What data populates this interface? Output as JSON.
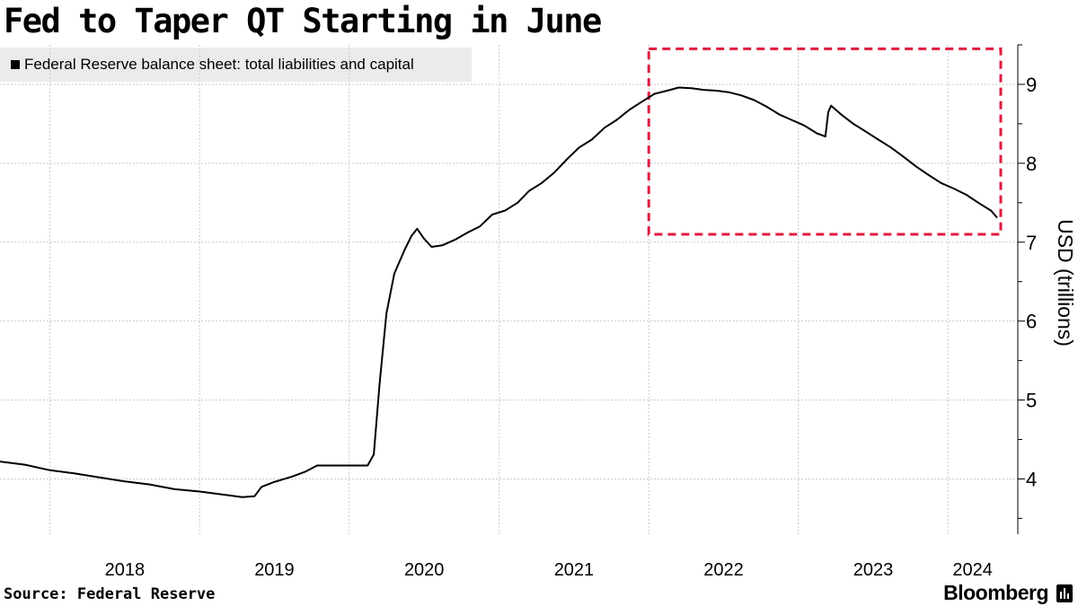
{
  "title": "Fed to Taper QT Starting in June",
  "legend_label": "Federal Reserve balance sheet: total liabilities and capital",
  "source": "Source: Federal Reserve",
  "brand": "Bloomberg",
  "brand_icon": "bloomberg-terminal-icon",
  "colors": {
    "line": "#000000",
    "grid": "#c8c8c8",
    "highlight": "#e0193f",
    "legend_bg": "#ebebeb"
  },
  "chart_data": {
    "type": "line",
    "title": "Fed to Taper QT Starting in June",
    "ylabel": "USD (trillions)",
    "ylim": [
      3.3,
      9.5
    ],
    "y_ticks": [
      4,
      5,
      6,
      7,
      8,
      9
    ],
    "xlim": [
      "2017-09-01",
      "2024-04-30"
    ],
    "x_ticks": [
      {
        "label": "2018",
        "date": "2018-01-01"
      },
      {
        "label": "2019",
        "date": "2019-01-01"
      },
      {
        "label": "2020",
        "date": "2020-01-01"
      },
      {
        "label": "2021",
        "date": "2021-01-01"
      },
      {
        "label": "2022",
        "date": "2022-01-01"
      },
      {
        "label": "2023",
        "date": "2023-01-01"
      },
      {
        "label": "2024",
        "date": "2024-01-01"
      }
    ],
    "grid": true,
    "legend_position": "top-left",
    "series": [
      {
        "name": "Federal Reserve balance sheet: total liabilities and capital",
        "points": [
          [
            "2017-09-01",
            4.22
          ],
          [
            "2017-11-01",
            4.18
          ],
          [
            "2018-01-01",
            4.11
          ],
          [
            "2018-03-01",
            4.07
          ],
          [
            "2018-05-01",
            4.02
          ],
          [
            "2018-07-01",
            3.97
          ],
          [
            "2018-09-01",
            3.93
          ],
          [
            "2018-11-01",
            3.87
          ],
          [
            "2019-01-01",
            3.84
          ],
          [
            "2019-03-01",
            3.8
          ],
          [
            "2019-04-15",
            3.77
          ],
          [
            "2019-05-15",
            3.78
          ],
          [
            "2019-06-01",
            3.9
          ],
          [
            "2019-07-01",
            3.96
          ],
          [
            "2019-08-15",
            4.03
          ],
          [
            "2019-09-15",
            4.09
          ],
          [
            "2019-10-15",
            4.17
          ],
          [
            "2019-12-01",
            4.17
          ],
          [
            "2020-01-01",
            4.17
          ],
          [
            "2020-02-15",
            4.17
          ],
          [
            "2020-03-01",
            4.31
          ],
          [
            "2020-03-15",
            5.2
          ],
          [
            "2020-04-01",
            6.1
          ],
          [
            "2020-04-20",
            6.6
          ],
          [
            "2020-05-15",
            6.9
          ],
          [
            "2020-06-01",
            7.08
          ],
          [
            "2020-06-15",
            7.17
          ],
          [
            "2020-07-01",
            7.05
          ],
          [
            "2020-07-20",
            6.94
          ],
          [
            "2020-08-15",
            6.96
          ],
          [
            "2020-09-15",
            7.03
          ],
          [
            "2020-10-15",
            7.12
          ],
          [
            "2020-11-15",
            7.2
          ],
          [
            "2020-12-15",
            7.35
          ],
          [
            "2021-01-15",
            7.4
          ],
          [
            "2021-02-15",
            7.5
          ],
          [
            "2021-03-15",
            7.65
          ],
          [
            "2021-04-15",
            7.75
          ],
          [
            "2021-05-15",
            7.88
          ],
          [
            "2021-06-15",
            8.05
          ],
          [
            "2021-07-15",
            8.2
          ],
          [
            "2021-08-15",
            8.3
          ],
          [
            "2021-09-15",
            8.45
          ],
          [
            "2021-10-15",
            8.55
          ],
          [
            "2021-11-15",
            8.68
          ],
          [
            "2021-12-15",
            8.78
          ],
          [
            "2022-01-15",
            8.88
          ],
          [
            "2022-02-15",
            8.92
          ],
          [
            "2022-03-15",
            8.96
          ],
          [
            "2022-04-15",
            8.95
          ],
          [
            "2022-05-15",
            8.93
          ],
          [
            "2022-06-15",
            8.92
          ],
          [
            "2022-07-15",
            8.9
          ],
          [
            "2022-08-15",
            8.86
          ],
          [
            "2022-09-15",
            8.8
          ],
          [
            "2022-10-15",
            8.72
          ],
          [
            "2022-11-15",
            8.62
          ],
          [
            "2022-12-15",
            8.55
          ],
          [
            "2023-01-15",
            8.48
          ],
          [
            "2023-02-15",
            8.38
          ],
          [
            "2023-03-08",
            8.34
          ],
          [
            "2023-03-15",
            8.65
          ],
          [
            "2023-03-22",
            8.73
          ],
          [
            "2023-04-15",
            8.62
          ],
          [
            "2023-05-15",
            8.5
          ],
          [
            "2023-06-15",
            8.4
          ],
          [
            "2023-07-15",
            8.3
          ],
          [
            "2023-08-15",
            8.2
          ],
          [
            "2023-09-15",
            8.08
          ],
          [
            "2023-10-15",
            7.96
          ],
          [
            "2023-11-15",
            7.85
          ],
          [
            "2023-12-15",
            7.75
          ],
          [
            "2024-01-15",
            7.68
          ],
          [
            "2024-02-15",
            7.6
          ],
          [
            "2024-03-15",
            7.5
          ],
          [
            "2024-04-15",
            7.4
          ],
          [
            "2024-04-30",
            7.31
          ]
        ]
      }
    ],
    "annotations": [
      {
        "type": "dashed-box",
        "x_from": "2022-01-01",
        "x_to": "2024-05-15",
        "y_from": 7.1,
        "y_to": 9.45
      }
    ]
  }
}
